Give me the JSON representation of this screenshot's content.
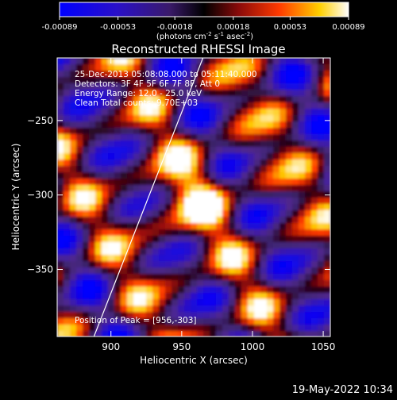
{
  "colorbar": {
    "ticks": [
      "-0.00089",
      "-0.00053",
      "-0.00018",
      "0.00018",
      "0.00053",
      "0.00089"
    ],
    "units": "(photons cm",
    "units_sup1": "-2",
    "units_mid1": " s",
    "units_sup2": "-1",
    "units_mid2": " asec",
    "units_sup3": "-2",
    "units_end": ")",
    "vmin": -0.00089,
    "vmax": 0.00089
  },
  "chart_data": {
    "type": "heatmap",
    "title": "Reconstructed RHESSI Image",
    "xlabel": "Heliocentric X (arcsec)",
    "ylabel": "Heliocentric Y (arcsec)",
    "xlim": [
      862,
      1055
    ],
    "ylim": [
      -395,
      -208
    ],
    "xticks": [
      900,
      950,
      1000,
      1050
    ],
    "yticks": [
      -250,
      -300,
      -350
    ],
    "annotations": [
      "25-Dec-2013 05:08:08.000 to 05:11:40.000",
      "Detectors: 3F 4F 5F 6F 7F 8F, Att 0",
      "Energy Range: 12.0 - 25.0 keV",
      "Clean     Total counts: 9.70E+03"
    ],
    "peak_label": "Position of Peak = [956,-303]",
    "peak": [
      956,
      -303
    ],
    "limb_line": [
      [
        888,
        -395
      ],
      [
        965,
        -208
      ]
    ]
  },
  "footer": {
    "timestamp": "19-May-2022 10:34"
  }
}
